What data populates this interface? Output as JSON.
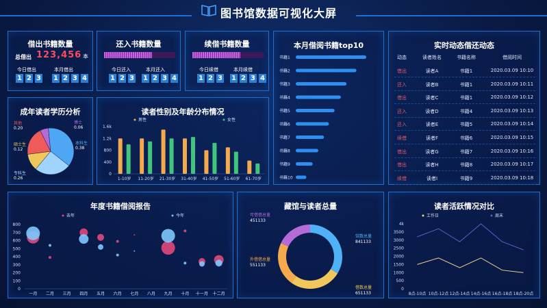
{
  "header": {
    "title": "图书馆数据可视化大屏"
  },
  "borrow": {
    "title": "借出书籍数量",
    "total_label": "总借出",
    "total_value": "123,456",
    "total_unit": "本",
    "today_label": "今日借出",
    "today_digits": [
      "1",
      "2",
      "3"
    ],
    "month_label": "本月借出",
    "month_digits": [
      "1",
      "2",
      "3",
      "4"
    ]
  },
  "returned": {
    "title": "还入书籍数量",
    "today_label": "今日还入",
    "today_digits": [
      "1",
      "2",
      "3"
    ],
    "month_label": "本月还入",
    "month_digits": [
      "1",
      "2",
      "3",
      "4"
    ]
  },
  "renew": {
    "title": "续借书籍数量",
    "today_label": "今日续借",
    "today_digits": [
      "1",
      "2",
      "3"
    ],
    "month_label": "本月续借",
    "month_digits": [
      "1",
      "2",
      "3",
      "4"
    ]
  },
  "colors": {
    "accent": "#1e6fd0",
    "orange": "#f4a94d",
    "green": "#3fc57c",
    "pink": "#e04a7a",
    "lightblue": "#7ec8ff",
    "purple": "#b46bd6"
  },
  "activity": {
    "title": "实时动态借还动态",
    "headers": [
      "动态",
      "读者姓名",
      "书籍名称",
      "借阅时间"
    ],
    "rows": [
      [
        "借出",
        "读者A",
        "书籍1",
        "2020.03.09 10:10"
      ],
      [
        "还入",
        "读者B",
        "书籍1",
        "2020.03.09 10:11"
      ],
      [
        "借出",
        "读者C",
        "书籍1",
        "2020.03.09 10:12"
      ],
      [
        "还入",
        "读者D",
        "书籍4",
        "2020.03.09 10:13"
      ],
      [
        "还入",
        "读者E",
        "书籍5",
        "2020.03.09 10:14"
      ],
      [
        "续借",
        "读者F",
        "书籍6",
        "2020.03.09 10:15"
      ],
      [
        "借出",
        "读者G",
        "书籍7",
        "2020.03.09 10:16"
      ],
      [
        "借出",
        "读者H",
        "书籍8",
        "2020.03.09 10:17"
      ],
      [
        "续借",
        "读者I",
        "书籍9",
        "2020.03.09 10:18"
      ]
    ]
  },
  "chart_data": [
    {
      "id": "edu",
      "type": "pie",
      "title": "成年读者学历分析",
      "slices": [
        {
          "label": "博士",
          "value": 0.06,
          "color": "#b46bd6"
        },
        {
          "label": "本科生",
          "value": 0.38,
          "color": "#4fa6f2"
        },
        {
          "label": "专科生",
          "value": 0.26,
          "color": "#9fd4ff"
        },
        {
          "label": "硕士生",
          "value": 0.12,
          "color": "#f0c75a"
        },
        {
          "label": "其他",
          "value": 0.2,
          "color": "#ef5a5a"
        }
      ],
      "slice_texts": [
        {
          "label": "博士",
          "text": "0.06"
        },
        {
          "label": "本科生",
          "text": "0.38"
        },
        {
          "label": "专科生",
          "text": "0.26"
        },
        {
          "label": "硕士生",
          "text": "0.12"
        },
        {
          "label": "其他",
          "text": "0.20"
        }
      ]
    },
    {
      "id": "gender_age",
      "type": "bar",
      "title": "读者性别及年龄分布情况",
      "categories": [
        "1-10岁",
        "11-20岁",
        "21-30岁",
        "31-40岁",
        "41-50岁",
        "51-60岁",
        "61-70岁"
      ],
      "series": [
        {
          "name": "男性",
          "color": "#f4a94d",
          "values": [
            1200,
            1200,
            1500,
            1200,
            800,
            900,
            450
          ]
        },
        {
          "name": "女性",
          "color": "#3fc57c",
          "values": [
            1000,
            1100,
            1200,
            1250,
            1050,
            750,
            350
          ]
        }
      ],
      "yticks": [
        "0",
        "400",
        "800",
        "1.2k",
        "1.6k"
      ],
      "ylim": [
        0,
        1600
      ]
    },
    {
      "id": "top10",
      "type": "bar",
      "orientation": "horizontal",
      "title": "本月借阅书籍top10",
      "categories": [
        "书籍1",
        "书籍2",
        "书籍3",
        "书籍4",
        "书籍5",
        "书籍6",
        "书籍7",
        "书籍8",
        "书籍9",
        "书籍10"
      ],
      "values": [
        100,
        86,
        72,
        64,
        55,
        47,
        40,
        32,
        24,
        15
      ]
    },
    {
      "id": "annual",
      "type": "scatter",
      "title": "年度书籍借阅报告",
      "categories": [
        "一月",
        "二月",
        "三月",
        "四月",
        "五月",
        "六月",
        "七月",
        "八月",
        "九月",
        "十月",
        "十一月",
        "十二月"
      ],
      "yticks": [
        "0",
        "100",
        "200",
        "300",
        "400",
        "500",
        "600",
        "700",
        "800"
      ],
      "ylim": [
        0,
        800
      ],
      "series": [
        {
          "name": "去年",
          "color": "#e04a7a",
          "points": [
            [
              0,
              640,
              9
            ],
            [
              1,
              390,
              2
            ],
            [
              3,
              700,
              6
            ],
            [
              4,
              640,
              5
            ],
            [
              5,
              590,
              2
            ],
            [
              6,
              670,
              1
            ],
            [
              8,
              510,
              10
            ],
            [
              9,
              720,
              2
            ],
            [
              10,
              340,
              5
            ],
            [
              11,
              360,
              7
            ]
          ]
        },
        {
          "name": "今年",
          "color": "#7ec8ff",
          "points": [
            [
              0,
              690,
              10
            ],
            [
              1,
              540,
              2
            ],
            [
              3,
              620,
              7
            ],
            [
              4,
              520,
              4
            ],
            [
              5,
              420,
              2
            ],
            [
              6,
              470,
              1
            ],
            [
              8,
              660,
              10
            ],
            [
              9,
              320,
              2
            ],
            [
              10,
              310,
              4
            ],
            [
              11,
              320,
              5
            ]
          ]
        }
      ]
    },
    {
      "id": "collection",
      "type": "pie",
      "title": "藏馆与读者总量",
      "slices": [
        {
          "label": "馆数总量",
          "value": 841133,
          "color": "#4fb2f6"
        },
        {
          "label": "借数总量",
          "value": 651133,
          "color": "#f0c75a"
        },
        {
          "label": "外借借总量",
          "value": 551133,
          "color": "#f4a94d"
        },
        {
          "label": "可借借总量",
          "value": 451133,
          "color": "#b46bd6"
        }
      ],
      "slice_texts": [
        {
          "label": "馆数总量",
          "text": "841133"
        },
        {
          "label": "借数总量",
          "text": "651133"
        },
        {
          "label": "外借借总量",
          "text": "551133"
        },
        {
          "label": "可借借总量",
          "text": "451133"
        }
      ]
    },
    {
      "id": "activity_compare",
      "type": "line",
      "title": "读者活跃情况对比",
      "categories": [
        "8点-10点",
        "10点-12点",
        "12点-14点",
        "14点-16点",
        "16点-18点",
        "18点-20点"
      ],
      "yticks": [
        "0",
        "500",
        "1000",
        "1500",
        "2000",
        "2500",
        "3000",
        "3500",
        "4k"
      ],
      "ylim": [
        0,
        4000
      ],
      "series": [
        {
          "name": "工作日",
          "color": "#f4d08a",
          "values": [
            1500,
            1900,
            1300,
            1900,
            1150,
            1000
          ]
        },
        {
          "name": "周末",
          "color": "#5b62c8",
          "values": [
            3200,
            3700,
            2900,
            4000,
            2900,
            2400
          ]
        }
      ]
    }
  ]
}
